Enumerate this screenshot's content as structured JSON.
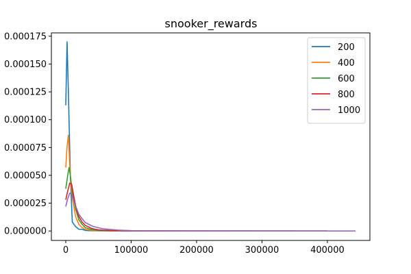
{
  "chart_data": {
    "type": "line",
    "title": "snooker_rewards",
    "xlabel": "",
    "ylabel": "",
    "xlim": [
      -22000,
      465000
    ],
    "ylim": [
      -8.5e-06,
      0.000178
    ],
    "xticks": [
      0,
      100000,
      200000,
      300000,
      400000
    ],
    "xtick_labels": [
      "0",
      "100000",
      "200000",
      "300000",
      "400000"
    ],
    "yticks": [
      0,
      2.5e-05,
      5e-05,
      7.5e-05,
      0.0001,
      0.000125,
      0.00015,
      0.000175
    ],
    "ytick_labels": [
      "0.000000",
      "0.000025",
      "0.000050",
      "0.000075",
      "0.000100",
      "0.000125",
      "0.000150",
      "0.000175"
    ],
    "grid": false,
    "legend_position": "top-right",
    "series": [
      {
        "name": "200",
        "color": "#1f77b4",
        "x": [
          0,
          2000,
          4000,
          7000,
          10000,
          15000,
          20000,
          25000,
          30000,
          35000,
          40000,
          60000,
          100000,
          200000,
          300000,
          350000
        ],
        "y": [
          0.000113,
          0.00017,
          0.000125,
          5e-05,
          8e-06,
          4e-06,
          1.5e-06,
          1.5e-06,
          5e-07,
          3e-07,
          2e-07,
          1e-07,
          0,
          0,
          0,
          0
        ]
      },
      {
        "name": "400",
        "color": "#ff7f0e",
        "x": [
          0,
          2000,
          4000,
          6000,
          8000,
          10000,
          15000,
          20000,
          25000,
          30000,
          40000,
          50000,
          70000,
          100000,
          200000,
          300000,
          350000
        ],
        "y": [
          5.7e-05,
          7.6e-05,
          8.6e-05,
          6e-05,
          4e-05,
          3e-05,
          1.3e-05,
          6e-06,
          3e-06,
          1.5e-06,
          5e-07,
          3e-07,
          1e-07,
          0,
          0,
          0,
          0
        ]
      },
      {
        "name": "600",
        "color": "#2ca02c",
        "x": [
          0,
          3000,
          5000,
          7000,
          10000,
          15000,
          20000,
          25000,
          30000,
          40000,
          50000,
          70000,
          100000,
          200000,
          300000,
          400000
        ],
        "y": [
          3.8e-05,
          5e-05,
          5.7e-05,
          5e-05,
          3.5e-05,
          2e-05,
          1e-05,
          6e-06,
          3e-06,
          1.2e-06,
          5e-07,
          2e-07,
          1e-07,
          0,
          0,
          0
        ]
      },
      {
        "name": "800",
        "color": "#d62728",
        "x": [
          0,
          3000,
          6000,
          9000,
          12000,
          16000,
          20000,
          25000,
          30000,
          40000,
          50000,
          70000,
          100000,
          200000,
          300000,
          400000
        ],
        "y": [
          2.8e-05,
          3.6e-05,
          4.3e-05,
          4.2e-05,
          3.2e-05,
          2e-05,
          1.3e-05,
          8e-06,
          5e-06,
          2.2e-06,
          1e-06,
          3e-07,
          1e-07,
          0,
          0,
          0
        ]
      },
      {
        "name": "1000",
        "color": "#9467bd",
        "x": [
          0,
          3000,
          6000,
          9000,
          12000,
          16000,
          20000,
          25000,
          30000,
          40000,
          50000,
          60000,
          80000,
          100000,
          200000,
          300000,
          443000
        ],
        "y": [
          2.2e-05,
          2.9e-05,
          3.4e-05,
          3.3e-05,
          2.8e-05,
          2.1e-05,
          1.5e-05,
          1.1e-05,
          7.5e-06,
          4.5e-06,
          2.8e-06,
          1.8e-06,
          8e-07,
          3e-07,
          1e-07,
          0,
          0
        ]
      }
    ]
  }
}
